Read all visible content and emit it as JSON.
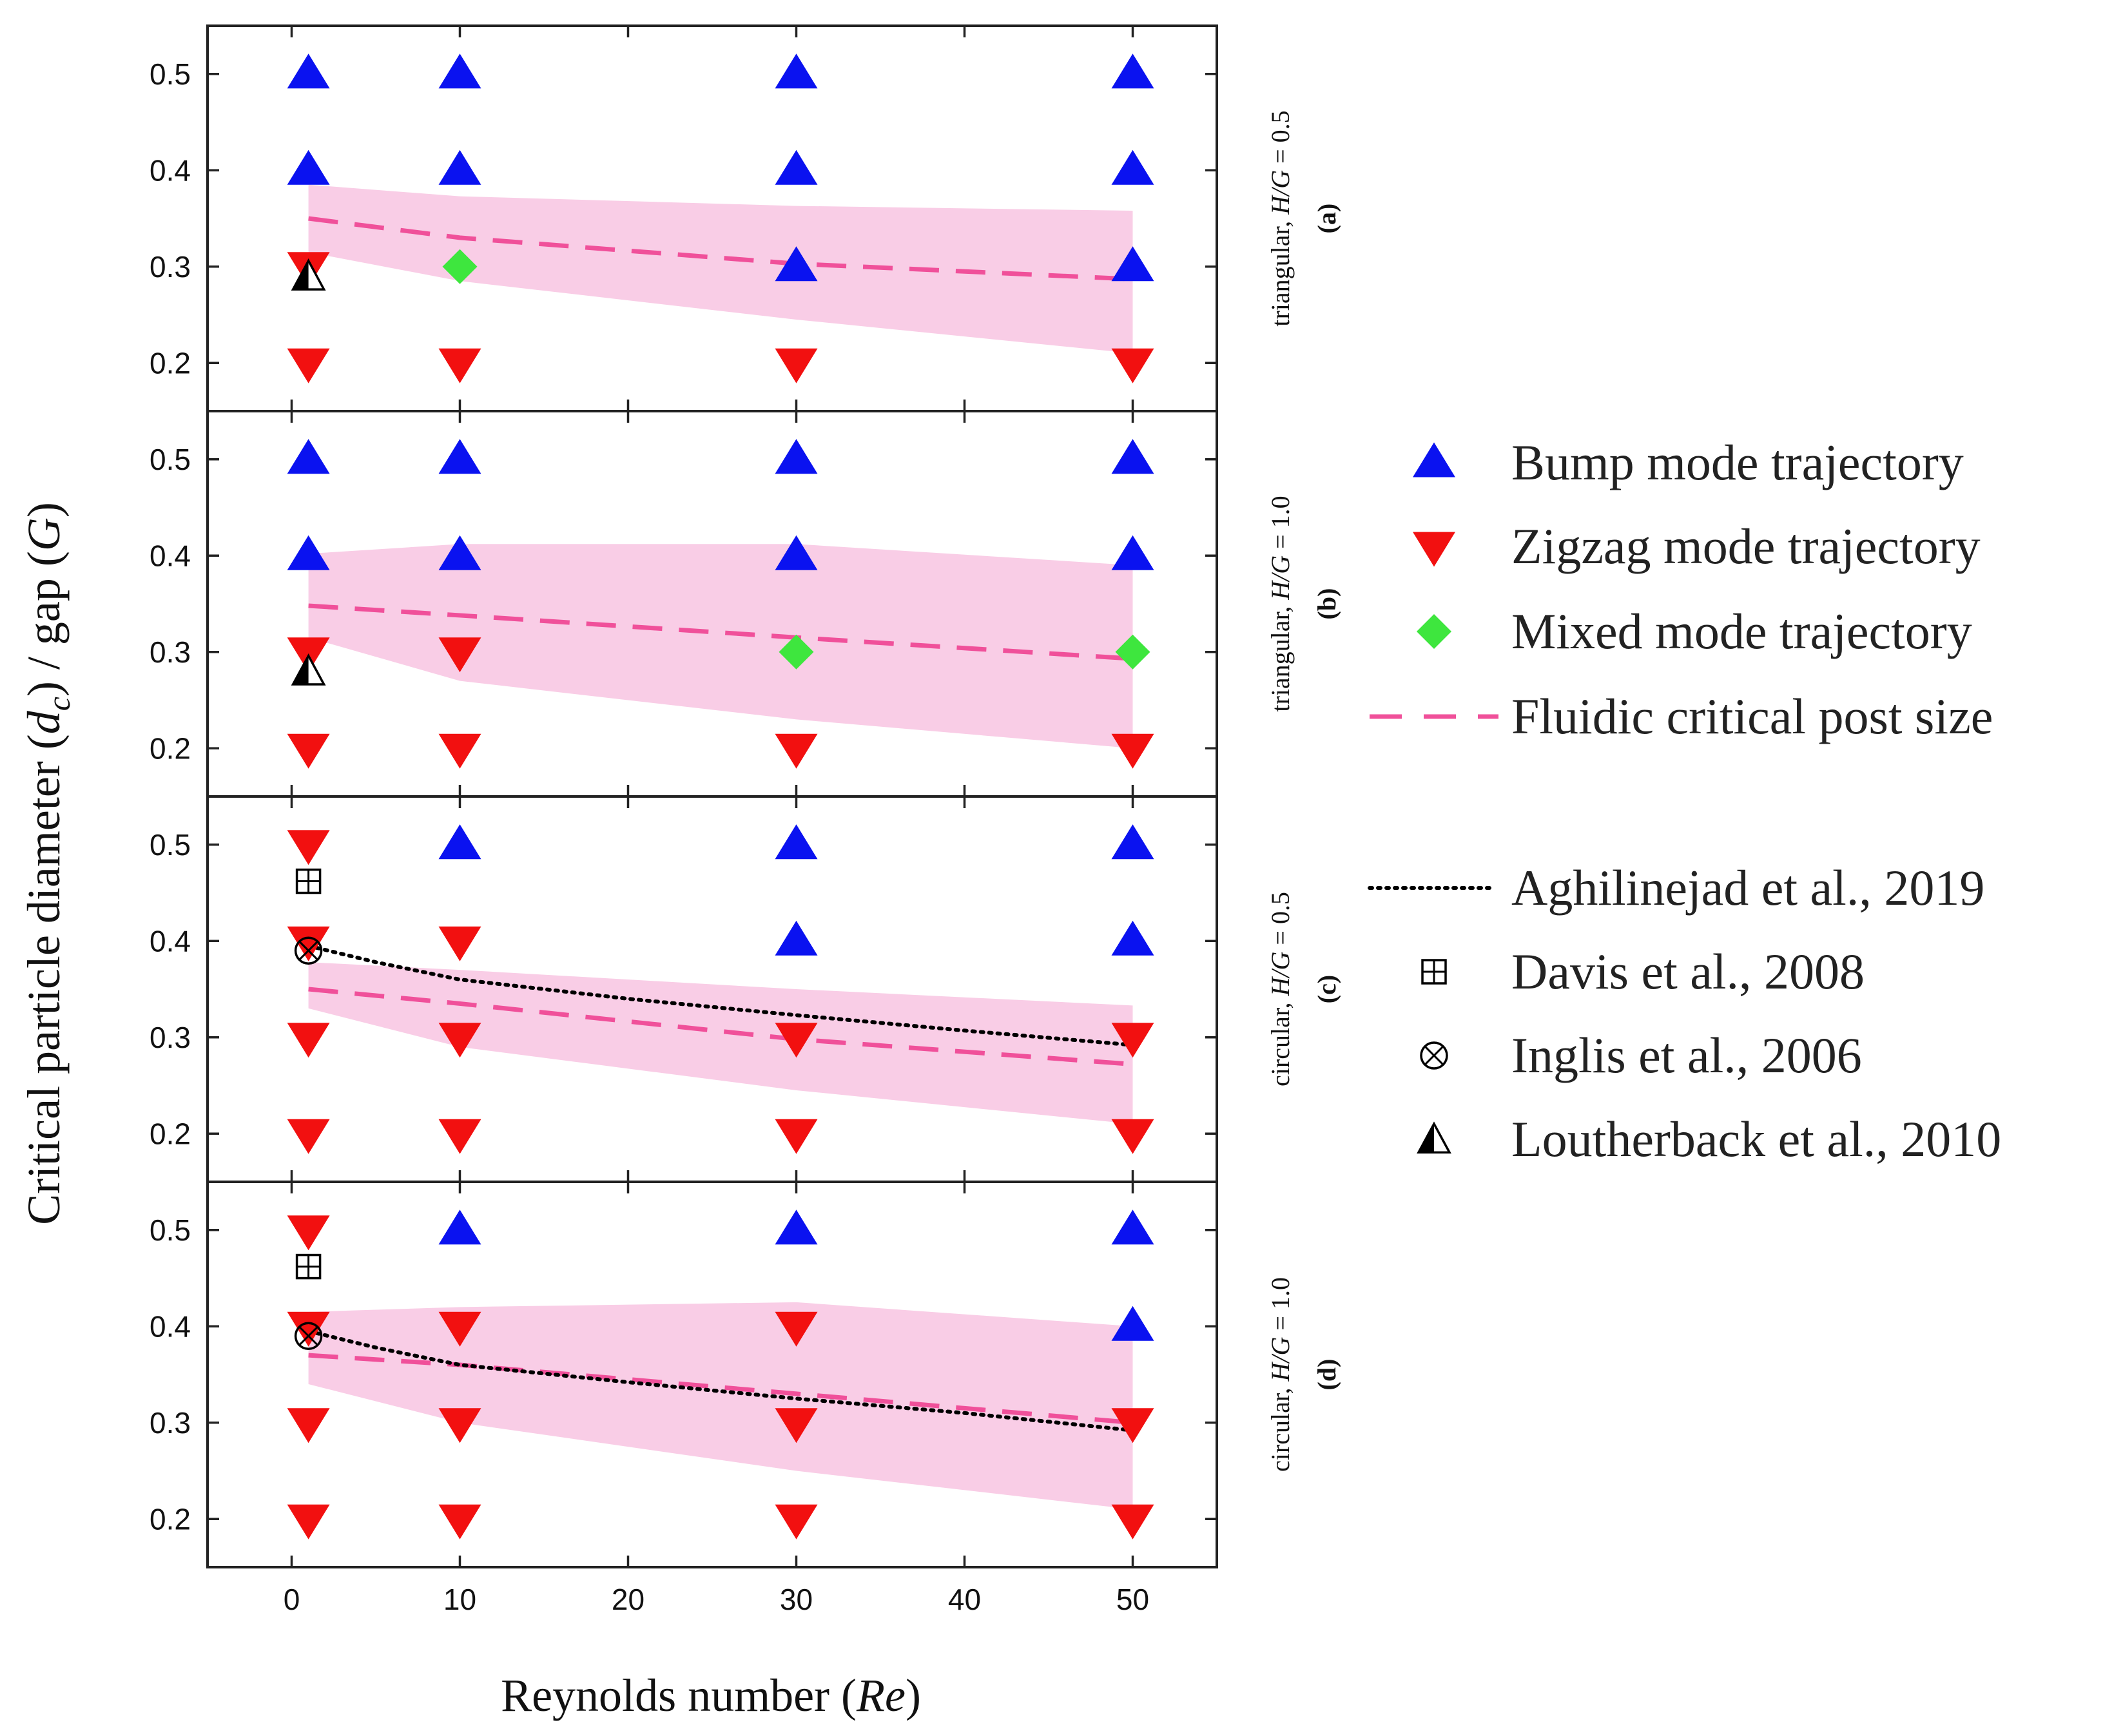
{
  "chart_data": {
    "type": "scatter",
    "x_label_main": "Reynolds number (",
    "x_label_italic": "Re",
    "x_label_end": ")",
    "y_label_main": "Critical particle diameter (",
    "y_label_d": "d",
    "y_label_c": "c",
    "y_label_mid": ") / gap (",
    "y_label_G": "G",
    "y_label_end": ")",
    "xlim": [
      -5,
      55
    ],
    "ylim": [
      0.15,
      0.55
    ],
    "x_ticks": [
      0,
      10,
      20,
      30,
      40,
      50
    ],
    "x_tick_labels": [
      "0",
      "10",
      "20",
      "30",
      "40",
      "50"
    ],
    "y_ticks": [
      0.2,
      0.3,
      0.4,
      0.5
    ],
    "y_tick_labels": [
      "0.2",
      "0.3",
      "0.4",
      "0.5"
    ],
    "colors": {
      "bump": "#0a12f0",
      "zigzag": "#f21010",
      "mixed": "#3ee63e",
      "fluidic": "#f0509a",
      "band": "#f9cde6",
      "aghilinejad": "#000000"
    },
    "panels": [
      {
        "id": "a",
        "label_prefix": "triangular, ",
        "label_ratio": "H/G",
        "label_value": " = 0.5",
        "label_letter": "(a)",
        "bump": [
          [
            1,
            0.5
          ],
          [
            10,
            0.5
          ],
          [
            30,
            0.5
          ],
          [
            50,
            0.5
          ],
          [
            1,
            0.4
          ],
          [
            10,
            0.4
          ],
          [
            30,
            0.4
          ],
          [
            50,
            0.4
          ],
          [
            30,
            0.3
          ],
          [
            50,
            0.3
          ]
        ],
        "zigzag": [
          [
            1,
            0.3
          ],
          [
            1,
            0.2
          ],
          [
            10,
            0.2
          ],
          [
            30,
            0.2
          ],
          [
            50,
            0.2
          ]
        ],
        "mixed": [
          [
            10,
            0.3
          ]
        ],
        "fluidic": [
          [
            1,
            0.35
          ],
          [
            10,
            0.33
          ],
          [
            30,
            0.303
          ],
          [
            50,
            0.287
          ]
        ],
        "band_upper": [
          [
            1,
            0.385
          ],
          [
            10,
            0.373
          ],
          [
            30,
            0.363
          ],
          [
            50,
            0.358
          ]
        ],
        "band_lower": [
          [
            1,
            0.315
          ],
          [
            10,
            0.285
          ],
          [
            30,
            0.245
          ],
          [
            50,
            0.21
          ]
        ],
        "aghilinejad": [],
        "davis": [],
        "inglis": [],
        "loutherback": [
          [
            1,
            0.29
          ]
        ]
      },
      {
        "id": "b",
        "label_prefix": "triangular, ",
        "label_ratio": "H/G",
        "label_value": " = 1.0",
        "label_letter": "(b)",
        "bump": [
          [
            1,
            0.5
          ],
          [
            10,
            0.5
          ],
          [
            30,
            0.5
          ],
          [
            50,
            0.5
          ],
          [
            1,
            0.4
          ],
          [
            10,
            0.4
          ],
          [
            30,
            0.4
          ],
          [
            50,
            0.4
          ]
        ],
        "zigzag": [
          [
            1,
            0.3
          ],
          [
            10,
            0.3
          ],
          [
            1,
            0.2
          ],
          [
            10,
            0.2
          ],
          [
            30,
            0.2
          ],
          [
            50,
            0.2
          ]
        ],
        "mixed": [
          [
            30,
            0.3
          ],
          [
            50,
            0.3
          ]
        ],
        "fluidic": [
          [
            1,
            0.348
          ],
          [
            10,
            0.338
          ],
          [
            30,
            0.315
          ],
          [
            50,
            0.293
          ]
        ],
        "band_upper": [
          [
            1,
            0.402
          ],
          [
            10,
            0.412
          ],
          [
            30,
            0.412
          ],
          [
            50,
            0.39
          ]
        ],
        "band_lower": [
          [
            1,
            0.315
          ],
          [
            10,
            0.27
          ],
          [
            30,
            0.23
          ],
          [
            50,
            0.2
          ]
        ],
        "aghilinejad": [],
        "davis": [],
        "inglis": [],
        "loutherback": [
          [
            1,
            0.28
          ]
        ]
      },
      {
        "id": "c",
        "label_prefix": "circular, ",
        "label_ratio": "H/G",
        "label_value": " = 0.5",
        "label_letter": "(c)",
        "bump": [
          [
            10,
            0.5
          ],
          [
            30,
            0.5
          ],
          [
            50,
            0.5
          ],
          [
            30,
            0.4
          ],
          [
            50,
            0.4
          ]
        ],
        "zigzag": [
          [
            1,
            0.5
          ],
          [
            1,
            0.4
          ],
          [
            10,
            0.4
          ],
          [
            1,
            0.3
          ],
          [
            10,
            0.3
          ],
          [
            30,
            0.3
          ],
          [
            50,
            0.3
          ],
          [
            1,
            0.2
          ],
          [
            10,
            0.2
          ],
          [
            30,
            0.2
          ],
          [
            50,
            0.2
          ]
        ],
        "mixed": [],
        "fluidic": [
          [
            1,
            0.35
          ],
          [
            10,
            0.335
          ],
          [
            30,
            0.298
          ],
          [
            50,
            0.272
          ]
        ],
        "band_upper": [
          [
            1,
            0.378
          ],
          [
            10,
            0.37
          ],
          [
            30,
            0.35
          ],
          [
            50,
            0.333
          ]
        ],
        "band_lower": [
          [
            1,
            0.33
          ],
          [
            10,
            0.29
          ],
          [
            30,
            0.245
          ],
          [
            50,
            0.21
          ]
        ],
        "aghilinejad": [
          [
            1,
            0.395
          ],
          [
            5,
            0.378
          ],
          [
            10,
            0.36
          ],
          [
            20,
            0.34
          ],
          [
            30,
            0.323
          ],
          [
            40,
            0.307
          ],
          [
            50,
            0.292
          ]
        ],
        "davis": [
          [
            1,
            0.462
          ]
        ],
        "inglis": [
          [
            1,
            0.39
          ]
        ],
        "loutherback": []
      },
      {
        "id": "d",
        "label_prefix": "circular, ",
        "label_ratio": "H/G",
        "label_value": " = 1.0",
        "label_letter": "(d)",
        "bump": [
          [
            10,
            0.5
          ],
          [
            30,
            0.5
          ],
          [
            50,
            0.5
          ],
          [
            50,
            0.4
          ]
        ],
        "zigzag": [
          [
            1,
            0.5
          ],
          [
            1,
            0.4
          ],
          [
            10,
            0.4
          ],
          [
            30,
            0.4
          ],
          [
            1,
            0.3
          ],
          [
            10,
            0.3
          ],
          [
            30,
            0.3
          ],
          [
            50,
            0.3
          ],
          [
            1,
            0.2
          ],
          [
            10,
            0.2
          ],
          [
            30,
            0.2
          ],
          [
            50,
            0.2
          ]
        ],
        "mixed": [],
        "fluidic": [
          [
            1,
            0.37
          ],
          [
            10,
            0.36
          ],
          [
            30,
            0.33
          ],
          [
            50,
            0.3
          ]
        ],
        "band_upper": [
          [
            1,
            0.415
          ],
          [
            10,
            0.42
          ],
          [
            30,
            0.425
          ],
          [
            50,
            0.4
          ]
        ],
        "band_lower": [
          [
            1,
            0.34
          ],
          [
            10,
            0.3
          ],
          [
            30,
            0.25
          ],
          [
            50,
            0.21
          ]
        ],
        "aghilinejad": [
          [
            1,
            0.395
          ],
          [
            5,
            0.378
          ],
          [
            10,
            0.36
          ],
          [
            20,
            0.342
          ],
          [
            30,
            0.325
          ],
          [
            40,
            0.31
          ],
          [
            50,
            0.292
          ]
        ],
        "davis": [
          [
            1,
            0.462
          ]
        ],
        "inglis": [
          [
            1,
            0.39
          ]
        ],
        "loutherback": []
      }
    ],
    "legend": {
      "bump": "Bump mode trajectory",
      "zigzag": "Zigzag mode trajectory",
      "mixed": "Mixed mode trajectory",
      "fluidic": "Fluidic critical post size",
      "aghilinejad": "Aghilinejad et al., 2019",
      "davis": "Davis et al., 2008",
      "inglis": "Inglis et al., 2006",
      "loutherback": "Loutherback et al., 2010"
    }
  }
}
